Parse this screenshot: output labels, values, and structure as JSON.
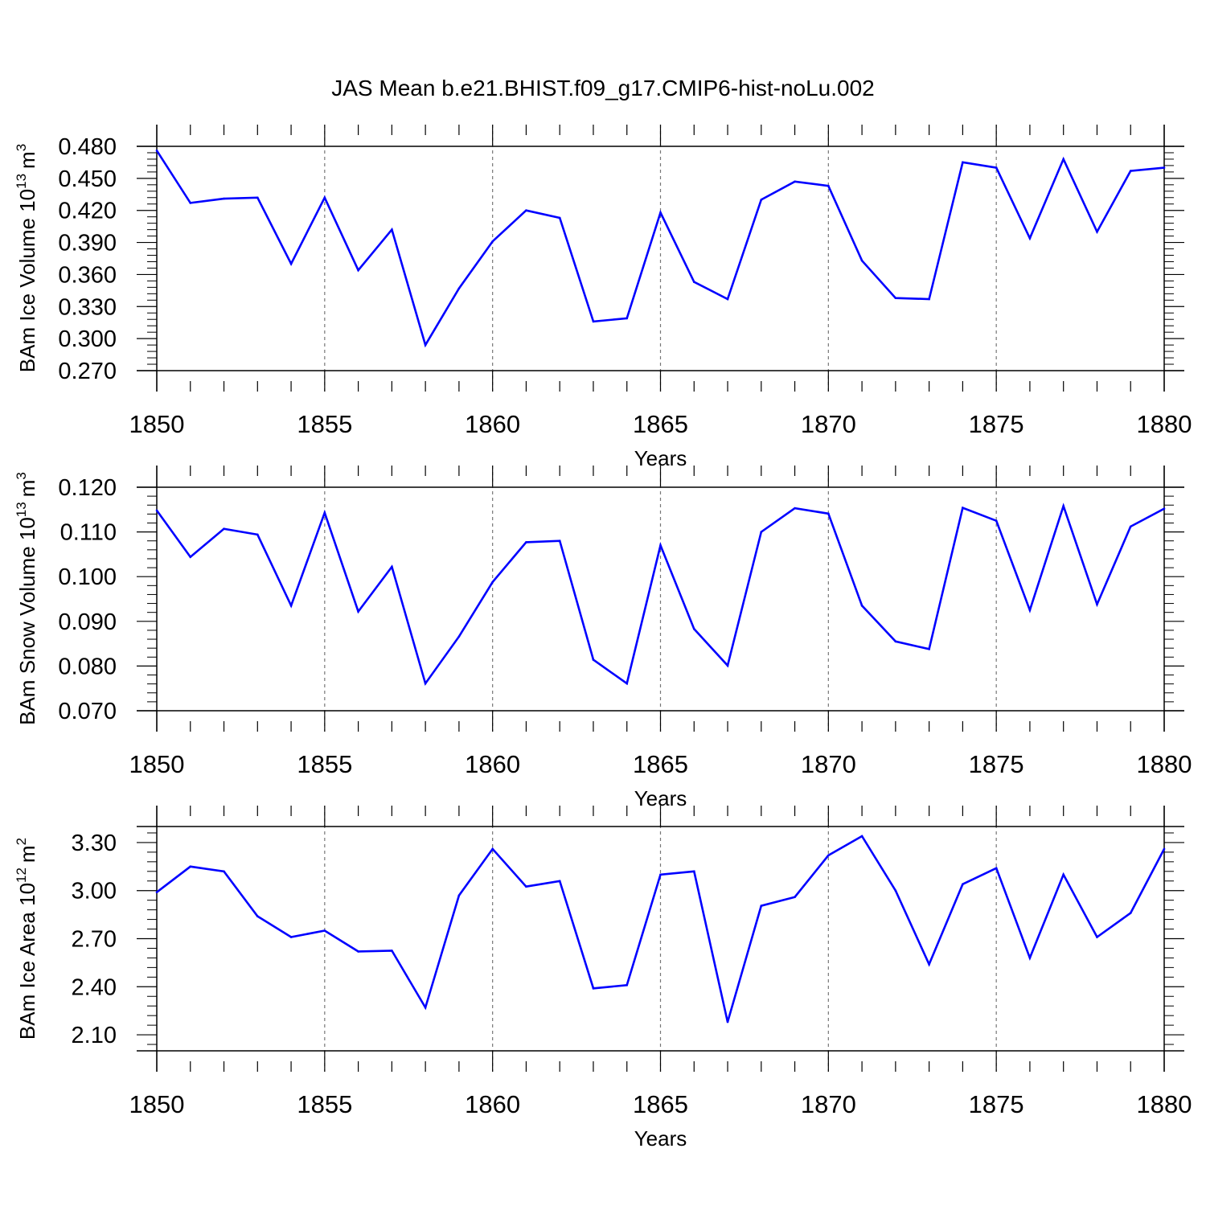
{
  "title": "JAS Mean b.e21.BHIST.f09_g17.CMIP6-hist-noLu.002",
  "line_color": "#0000ff",
  "chart_data": [
    {
      "type": "line",
      "ylabel": "BAm Ice Volume 10",
      "ylabel_exp": "13",
      "ylabel_unit": "m",
      "ylabel_unit_exp": "3",
      "xlabel": "Years",
      "xlim": [
        1850,
        1880
      ],
      "ylim": [
        0.27,
        0.48
      ],
      "xticks": [
        "1850",
        "1855",
        "1860",
        "1865",
        "1870",
        "1875",
        "1880"
      ],
      "yticks": [
        0.27,
        0.3,
        0.33,
        0.36,
        0.39,
        0.42,
        0.45,
        0.48
      ],
      "ytick_labels": [
        "0.270",
        "0.300",
        "0.330",
        "0.360",
        "0.390",
        "0.420",
        "0.450",
        "0.480"
      ],
      "x": [
        1850,
        1851,
        1852,
        1853,
        1854,
        1855,
        1856,
        1857,
        1858,
        1859,
        1860,
        1861,
        1862,
        1863,
        1864,
        1865,
        1866,
        1867,
        1868,
        1869,
        1870,
        1871,
        1872,
        1873,
        1874,
        1875,
        1876,
        1877,
        1878,
        1879,
        1880
      ],
      "values": [
        0.476,
        0.427,
        0.431,
        0.432,
        0.37,
        0.432,
        0.364,
        0.402,
        0.294,
        0.347,
        0.391,
        0.42,
        0.413,
        0.316,
        0.319,
        0.418,
        0.353,
        0.337,
        0.43,
        0.447,
        0.443,
        0.373,
        0.338,
        0.337,
        0.465,
        0.46,
        0.394,
        0.468,
        0.4,
        0.457,
        0.46
      ]
    },
    {
      "type": "line",
      "ylabel": "BAm Snow Volume 10",
      "ylabel_exp": "13",
      "ylabel_unit": "m",
      "ylabel_unit_exp": "3",
      "xlabel": "Years",
      "xlim": [
        1850,
        1880
      ],
      "ylim": [
        0.07,
        0.12
      ],
      "xticks": [
        "1850",
        "1855",
        "1860",
        "1865",
        "1870",
        "1875",
        "1880"
      ],
      "yticks": [
        0.07,
        0.08,
        0.09,
        0.1,
        0.11,
        0.12
      ],
      "ytick_labels": [
        "0.070",
        "0.080",
        "0.090",
        "0.100",
        "0.110",
        "0.120"
      ],
      "x": [
        1850,
        1851,
        1852,
        1853,
        1854,
        1855,
        1856,
        1857,
        1858,
        1859,
        1860,
        1861,
        1862,
        1863,
        1864,
        1865,
        1866,
        1867,
        1868,
        1869,
        1870,
        1871,
        1872,
        1873,
        1874,
        1875,
        1876,
        1877,
        1878,
        1879,
        1880
      ],
      "values": [
        0.1148,
        0.1044,
        0.1107,
        0.1094,
        0.0935,
        0.1143,
        0.0922,
        0.1022,
        0.0761,
        0.0866,
        0.0988,
        0.1077,
        0.108,
        0.0814,
        0.0761,
        0.107,
        0.0883,
        0.0801,
        0.11,
        0.1153,
        0.1141,
        0.0935,
        0.0855,
        0.0838,
        0.1154,
        0.1125,
        0.0925,
        0.1158,
        0.0938,
        0.1112,
        0.1152
      ]
    },
    {
      "type": "line",
      "ylabel": "BAm Ice Area 10",
      "ylabel_exp": "12",
      "ylabel_unit": "m",
      "ylabel_unit_exp": "2",
      "xlabel": "Years",
      "xlim": [
        1850,
        1880
      ],
      "ylim": [
        2.0,
        3.4
      ],
      "xticks": [
        "1850",
        "1855",
        "1860",
        "1865",
        "1870",
        "1875",
        "1880"
      ],
      "yticks": [
        2.1,
        2.4,
        2.7,
        3.0,
        3.3
      ],
      "ytick_labels": [
        "2.10",
        "2.40",
        "2.70",
        "3.00",
        "3.30"
      ],
      "x": [
        1850,
        1851,
        1852,
        1853,
        1854,
        1855,
        1856,
        1857,
        1858,
        1859,
        1860,
        1861,
        1862,
        1863,
        1864,
        1865,
        1866,
        1867,
        1868,
        1869,
        1870,
        1871,
        1872,
        1873,
        1874,
        1875,
        1876,
        1877,
        1878,
        1879,
        1880
      ],
      "values": [
        2.99,
        3.15,
        3.12,
        2.84,
        2.71,
        2.75,
        2.62,
        2.625,
        2.27,
        2.97,
        3.26,
        3.025,
        3.06,
        2.39,
        2.41,
        3.1,
        3.12,
        2.18,
        2.905,
        2.96,
        3.22,
        3.34,
        3.0,
        2.54,
        3.04,
        3.14,
        2.58,
        3.1,
        2.71,
        2.86,
        3.26
      ]
    }
  ]
}
